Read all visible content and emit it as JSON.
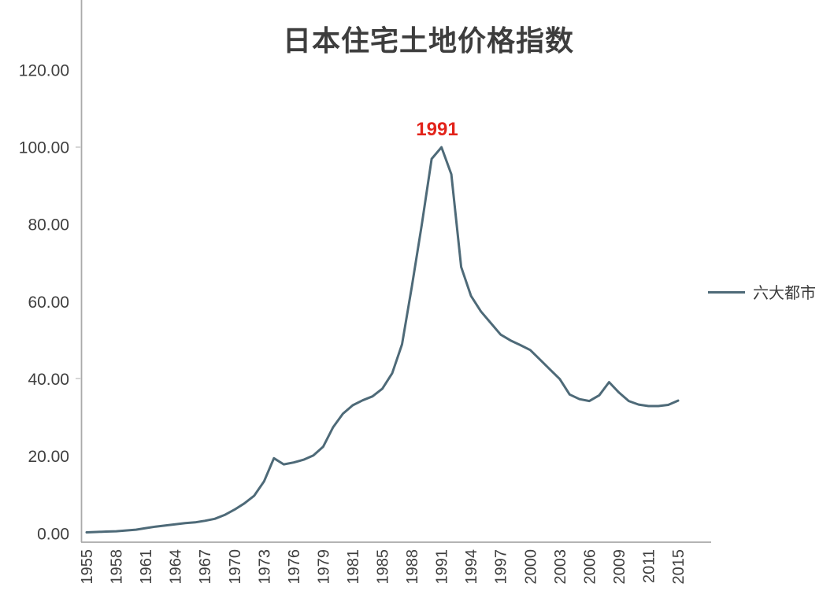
{
  "colors": {
    "background": "#ffffff",
    "line": "#4e6a78",
    "annotation_red": "#e2231a",
    "axis_gray": "#aaaaaa",
    "text_dark": "#3d3d3d"
  },
  "chart_data": {
    "type": "line",
    "title": "日本住宅土地价格指数",
    "annotation": {
      "text": "1991",
      "color": "#e2231a",
      "anchor_year": 1991,
      "anchor_value": 100
    },
    "legend": {
      "position": "right",
      "entries": [
        {
          "label": "六大都市",
          "color": "#4e6a78"
        }
      ]
    },
    "x_axis": {
      "tick_labels": [
        "1955",
        "1958",
        "1961",
        "1964",
        "1967",
        "1970",
        "1973",
        "1976",
        "1979",
        "1981",
        "1985",
        "1988",
        "1991",
        "1994",
        "1997",
        "2000",
        "2003",
        "2006",
        "2009",
        "2011",
        "2015"
      ],
      "label_rotation": -90,
      "range": [
        1955,
        2015
      ]
    },
    "y_axis": {
      "tick_labels": [
        "0.00",
        "20.00",
        "40.00",
        "60.00",
        "80.00",
        "100.00",
        "120.00"
      ],
      "min": 0,
      "max": 120
    },
    "grid": false,
    "series": [
      {
        "name": "六大都市",
        "color": "#4e6a78",
        "x": [
          1955,
          1956,
          1957,
          1958,
          1959,
          1960,
          1961,
          1962,
          1963,
          1964,
          1965,
          1966,
          1967,
          1968,
          1969,
          1970,
          1971,
          1972,
          1973,
          1974,
          1975,
          1976,
          1977,
          1978,
          1979,
          1980,
          1981,
          1982,
          1983,
          1984,
          1985,
          1986,
          1987,
          1988,
          1989,
          1990,
          1991,
          1992,
          1993,
          1994,
          1995,
          1996,
          1997,
          1998,
          1999,
          2000,
          2001,
          2002,
          2003,
          2004,
          2005,
          2006,
          2007,
          2008,
          2009,
          2010,
          2011,
          2012,
          2013,
          2014,
          2015
        ],
        "values": [
          0.3,
          0.4,
          0.5,
          0.6,
          0.8,
          1.0,
          1.4,
          1.8,
          2.1,
          2.4,
          2.7,
          2.9,
          3.3,
          3.8,
          4.8,
          6.2,
          7.8,
          9.8,
          13.5,
          19.5,
          17.9,
          18.4,
          19.1,
          20.2,
          22.5,
          27.5,
          31.0,
          33.2,
          34.5,
          35.5,
          37.5,
          41.5,
          49.0,
          64.0,
          80.0,
          97.0,
          100.0,
          93.0,
          69.0,
          61.5,
          57.5,
          54.5,
          51.5,
          50.0,
          48.8,
          47.5,
          45.0,
          42.5,
          40.0,
          36.0,
          34.8,
          34.3,
          35.8,
          39.2,
          36.5,
          34.3,
          33.4,
          33.0,
          33.0,
          33.3,
          34.4
        ]
      }
    ]
  }
}
